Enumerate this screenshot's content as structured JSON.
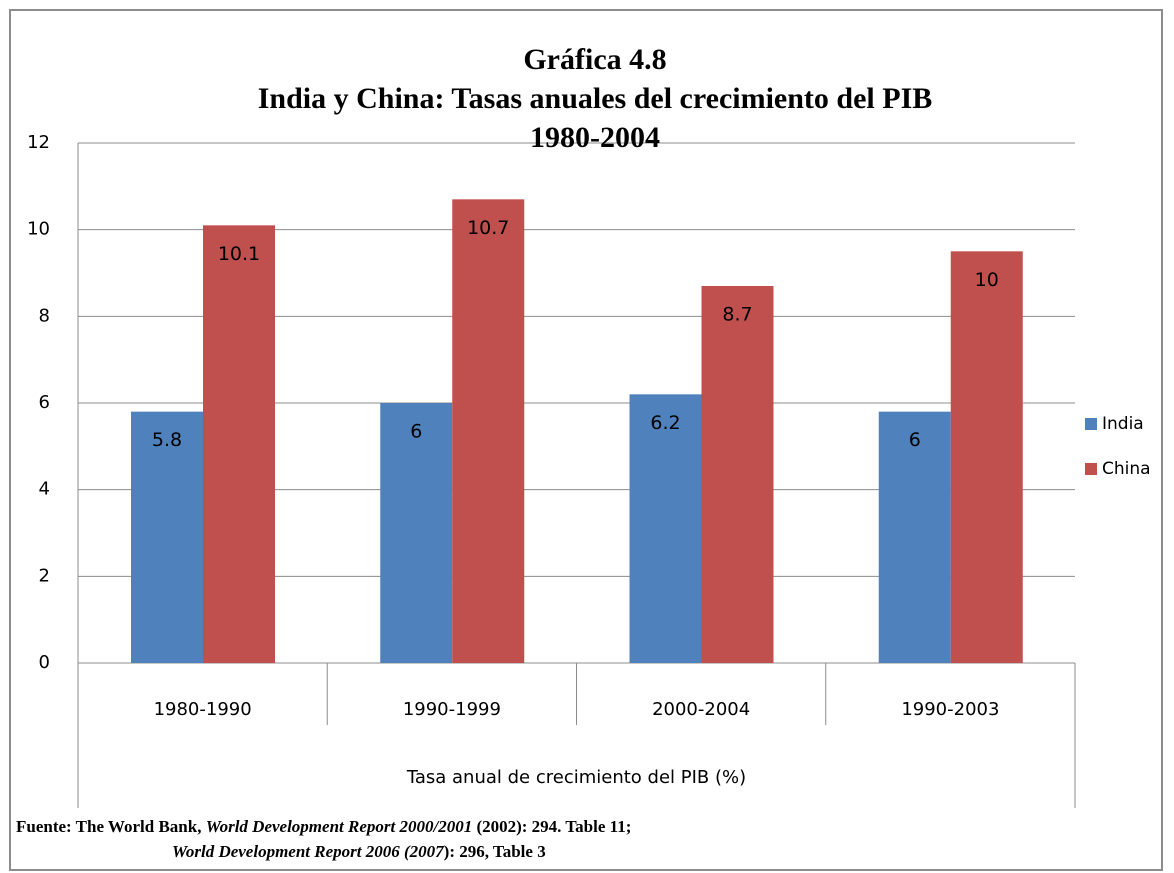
{
  "chart_data": {
    "type": "bar",
    "title": [
      "Gráfica 4.8",
      "India y China: Tasas anuales del crecimiento del PIB",
      "1980-2004"
    ],
    "x_label": "Tasa anual de crecimiento del PIB (%)",
    "categories": [
      "1980-1990",
      "1990-1999",
      "2000-2004",
      "1990-2003"
    ],
    "series": [
      {
        "name": "India",
        "color": "#4f81bd",
        "values": [
          5.8,
          6,
          6.2,
          5.8
        ],
        "value_labels": [
          "5.8",
          "6",
          "6.2",
          "6"
        ]
      },
      {
        "name": "China",
        "color": "#c0504d",
        "values": [
          10.1,
          10.7,
          8.7,
          9.5
        ],
        "value_labels": [
          "10.1",
          "10.7",
          "8.7",
          "10"
        ]
      }
    ],
    "ylim": [
      0,
      12
    ],
    "yticks": [
      0,
      2,
      4,
      6,
      8,
      10,
      12
    ],
    "grid": true,
    "legend": "right",
    "source": [
      [
        {
          "text": "Fuente: The World Bank, ",
          "italic": false
        },
        {
          "text": "World Development Report 2000/2001",
          "italic": true
        },
        {
          "text": " (2002): 294. Table 11;",
          "italic": false
        }
      ],
      [
        {
          "text": "World Development Report 2006 (2007",
          "italic": true
        },
        {
          "text": "): 296, Table 3",
          "italic": false
        }
      ]
    ]
  }
}
